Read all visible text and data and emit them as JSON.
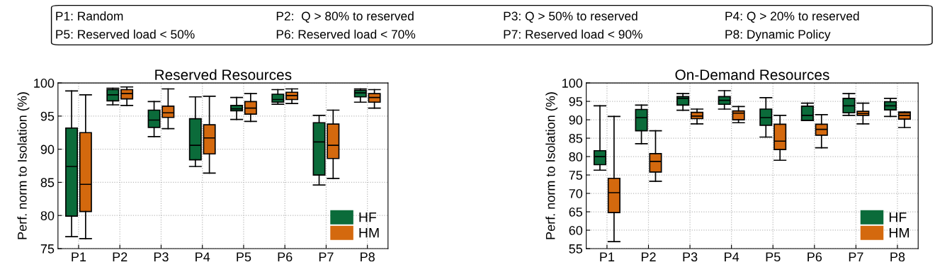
{
  "chart_data": [
    {
      "type": "box",
      "title": "Reserved Resources",
      "ylabel": "Perf. norm to Isolation (%)",
      "categories": [
        "P1",
        "P2",
        "P3",
        "P4",
        "P5",
        "P6",
        "P7",
        "P8"
      ],
      "ylim": [
        75,
        100
      ],
      "yticks": [
        75,
        80,
        85,
        90,
        95,
        100
      ],
      "grid": true,
      "legend": "bottom right",
      "annotations": [
        "P1: Random",
        "P2:  Q > 80% to reserved",
        "P3: Q > 50% to reserved",
        "P4: Q > 20% to reserved",
        "P5: Reserved load < 50%",
        "P6: Reserved load < 70%",
        "P7: Reserved load < 90%",
        "P8: Dynamic Policy"
      ],
      "series": [
        {
          "name": "HF",
          "color": "#0b6b3a",
          "boxes": [
            {
              "low": 76.8,
              "q1": 79.9,
              "median": 87.4,
              "q3": 93.2,
              "high": 98.8
            },
            {
              "low": 96.7,
              "q1": 97.3,
              "median": 98.2,
              "q3": 99.0,
              "high": 99.2
            },
            {
              "low": 91.9,
              "q1": 93.3,
              "median": 94.4,
              "q3": 95.9,
              "high": 97.2
            },
            {
              "low": 87.4,
              "q1": 88.4,
              "median": 90.6,
              "q3": 94.6,
              "high": 97.9
            },
            {
              "low": 94.5,
              "q1": 95.8,
              "median": 96.1,
              "q3": 96.6,
              "high": 97.8
            },
            {
              "low": 96.8,
              "q1": 97.1,
              "median": 97.5,
              "q3": 98.3,
              "high": 99.0
            },
            {
              "low": 84.6,
              "q1": 86.1,
              "median": 91.1,
              "q3": 94.0,
              "high": 95.1
            },
            {
              "low": 97.1,
              "q1": 97.9,
              "median": 98.5,
              "q3": 98.9,
              "high": 99.1
            }
          ]
        },
        {
          "name": "HM",
          "color": "#d4690e",
          "boxes": [
            {
              "low": 76.5,
              "q1": 80.6,
              "median": 84.7,
              "q3": 92.5,
              "high": 98.2
            },
            {
              "low": 96.6,
              "q1": 97.6,
              "median": 98.4,
              "q3": 99.0,
              "high": 99.4
            },
            {
              "low": 93.1,
              "q1": 94.8,
              "median": 95.5,
              "q3": 96.5,
              "high": 99.1
            },
            {
              "low": 86.4,
              "q1": 89.3,
              "median": 91.7,
              "q3": 93.7,
              "high": 98.0
            },
            {
              "low": 94.2,
              "q1": 95.3,
              "median": 96.2,
              "q3": 97.2,
              "high": 98.4
            },
            {
              "low": 96.9,
              "q1": 97.5,
              "median": 98.1,
              "q3": 98.6,
              "high": 99.1
            },
            {
              "low": 85.6,
              "q1": 88.6,
              "median": 90.6,
              "q3": 93.8,
              "high": 95.9
            },
            {
              "low": 96.2,
              "q1": 97.1,
              "median": 97.8,
              "q3": 98.4,
              "high": 99.0
            }
          ]
        }
      ]
    },
    {
      "type": "box",
      "title": "On-Demand Resources",
      "ylabel": "Perf. norm to Isolation (%)",
      "categories": [
        "P1",
        "P2",
        "P3",
        "P4",
        "P5",
        "P6",
        "P7",
        "P8"
      ],
      "ylim": [
        55,
        100
      ],
      "yticks": [
        55,
        60,
        65,
        70,
        75,
        80,
        85,
        90,
        95,
        100
      ],
      "grid": true,
      "legend": "bottom right",
      "series": [
        {
          "name": "HF",
          "color": "#0b6b3a",
          "boxes": [
            {
              "low": 76.3,
              "q1": 77.8,
              "median": 80.0,
              "q3": 81.6,
              "high": 93.8
            },
            {
              "low": 83.5,
              "q1": 87.0,
              "median": 90.6,
              "q3": 92.8,
              "high": 94.0
            },
            {
              "low": 92.6,
              "q1": 94.0,
              "median": 95.8,
              "q3": 96.3,
              "high": 97.1
            },
            {
              "low": 92.9,
              "q1": 94.2,
              "median": 95.3,
              "q3": 96.3,
              "high": 97.9
            },
            {
              "low": 85.3,
              "q1": 88.5,
              "median": 90.6,
              "q3": 92.9,
              "high": 96.0
            },
            {
              "low": 89.8,
              "q1": 89.8,
              "median": 91.2,
              "q3": 93.7,
              "high": 94.5
            },
            {
              "low": 91.2,
              "q1": 91.9,
              "median": 93.8,
              "q3": 95.8,
              "high": 97.1
            },
            {
              "low": 90.9,
              "q1": 92.7,
              "median": 93.8,
              "q3": 94.9,
              "high": 95.8
            }
          ]
        },
        {
          "name": "HM",
          "color": "#d4690e",
          "boxes": [
            {
              "low": 56.9,
              "q1": 64.8,
              "median": 70.2,
              "q3": 74.1,
              "high": 90.9
            },
            {
              "low": 73.3,
              "q1": 75.8,
              "median": 78.7,
              "q3": 80.8,
              "high": 87.0
            },
            {
              "low": 88.9,
              "q1": 90.3,
              "median": 91.0,
              "q3": 92.0,
              "high": 92.9
            },
            {
              "low": 89.2,
              "q1": 90.0,
              "median": 91.8,
              "q3": 92.4,
              "high": 93.6
            },
            {
              "low": 79.0,
              "q1": 81.9,
              "median": 84.2,
              "q3": 88.8,
              "high": 91.2
            },
            {
              "low": 82.4,
              "q1": 85.8,
              "median": 87.4,
              "q3": 88.8,
              "high": 91.4
            },
            {
              "low": 88.9,
              "q1": 91.2,
              "median": 91.7,
              "q3": 92.3,
              "high": 94.5
            },
            {
              "low": 87.9,
              "q1": 90.2,
              "median": 91.2,
              "q3": 91.9,
              "high": 92.1
            }
          ]
        }
      ]
    }
  ]
}
